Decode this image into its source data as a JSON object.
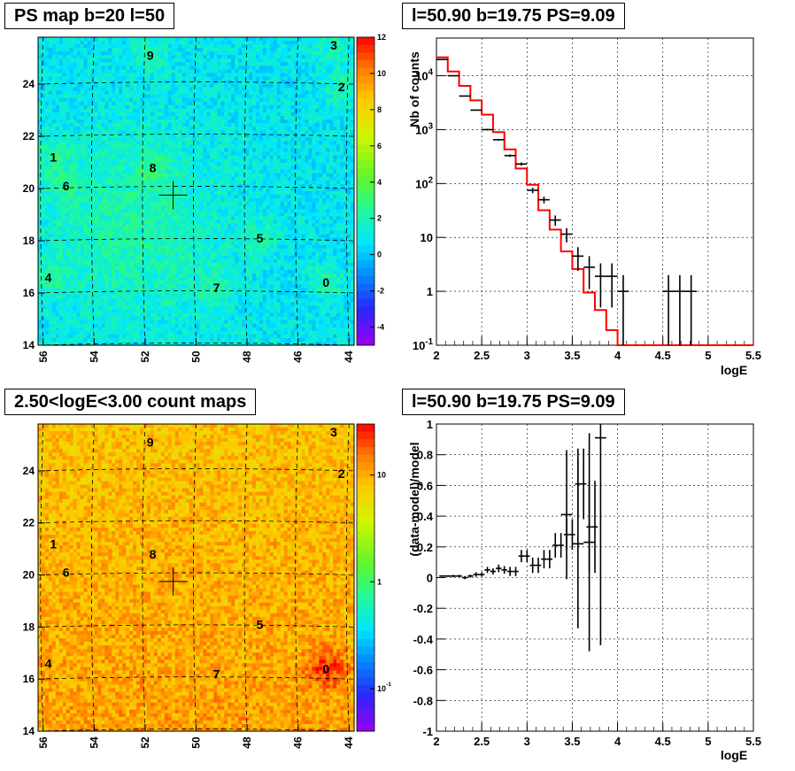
{
  "panels": {
    "tl": {
      "title": "PS map b=20 l=50"
    },
    "tr": {
      "title": "l=50.90 b=19.75 PS=9.09"
    },
    "bl": {
      "title": "2.50<logE<3.00 count maps"
    },
    "br": {
      "title": "l=50.90 b=19.75 PS=9.09"
    }
  },
  "colors": {
    "model_line": "#ff0000",
    "data": "#000000"
  },
  "chart_data": [
    {
      "type": "heatmap",
      "title": "PS map b=20 l=50",
      "x_ticks": [
        "56",
        "54",
        "52",
        "50",
        "48",
        "46",
        "44"
      ],
      "y_ticks": [
        "14",
        "16",
        "18",
        "20",
        "22",
        "24"
      ],
      "xlim": [
        56.2,
        43.8
      ],
      "ylim": [
        14,
        25.8
      ],
      "colorbar": {
        "min": -5,
        "max": 12,
        "ticks": [
          "12",
          "10",
          "8",
          "6",
          "4",
          "2",
          "0",
          "-2",
          "-4"
        ],
        "scale": "linear"
      },
      "marker": {
        "l": 50.9,
        "b": 19.75
      },
      "sources": [
        {
          "label": "0",
          "l": 44.9,
          "b": 16.4
        },
        {
          "label": "1",
          "l": 55.6,
          "b": 21.2
        },
        {
          "label": "2",
          "l": 44.3,
          "b": 23.9
        },
        {
          "label": "3",
          "l": 44.6,
          "b": 25.5
        },
        {
          "label": "4",
          "l": 55.8,
          "b": 16.6
        },
        {
          "label": "5",
          "l": 47.5,
          "b": 18.1
        },
        {
          "label": "6",
          "l": 55.1,
          "b": 20.1
        },
        {
          "label": "7",
          "l": 49.2,
          "b": 16.2
        },
        {
          "label": "8",
          "l": 51.7,
          "b": 20.8
        },
        {
          "label": "9",
          "l": 51.8,
          "b": 25.1
        }
      ]
    },
    {
      "type": "line",
      "title": "l=50.90 b=19.75 PS=9.09",
      "xlabel": "logE",
      "ylabel": "Nb of counts",
      "xlim": [
        2,
        5.5
      ],
      "ylim": [
        0.1,
        50000
      ],
      "yscale": "log",
      "grid": true,
      "x_ticks": [
        "2",
        "2.5",
        "3",
        "3.5",
        "4",
        "4.5",
        "5",
        "5.5"
      ],
      "y_ticks": [
        "10^-1",
        "1",
        "10",
        "10^2",
        "10^3",
        "10^4"
      ],
      "bin_width": 0.125,
      "series": [
        {
          "x": [
            2.0625,
            2.1875,
            2.3125,
            2.4375,
            2.5625,
            2.6875,
            2.8125,
            2.9375,
            3.0625,
            3.1875,
            3.3125,
            3.4375,
            3.5625,
            3.6875,
            3.8125,
            3.9375,
            4.0625,
            4.5625,
            4.6875,
            4.8125
          ],
          "values": [
            20000,
            10000,
            4200,
            2300,
            1000,
            650,
            330,
            230,
            75,
            50,
            21,
            11.5,
            4.5,
            2.8,
            1.9,
            1.9,
            1,
            1,
            1,
            1
          ],
          "errors_low": [
            141,
            100,
            65,
            48,
            32,
            25,
            18,
            15,
            8.7,
            7.1,
            4.6,
            3.4,
            2.1,
            1.7,
            1.4,
            1.4,
            1,
            1,
            1,
            1
          ],
          "errors_high": [
            141,
            100,
            65,
            48,
            32,
            25,
            18,
            15,
            8.7,
            7.1,
            4.6,
            3.4,
            2.1,
            1.7,
            1.4,
            1.4,
            1,
            1,
            1,
            1
          ]
        },
        {
          "bin_edges": [
            2.0,
            2.125,
            2.25,
            2.375,
            2.5,
            2.625,
            2.75,
            2.875,
            3.0,
            3.125,
            3.25,
            3.375,
            3.5,
            3.625,
            3.75,
            3.875,
            4.0,
            4.125,
            5.5
          ],
          "values": [
            22000,
            12000,
            6500,
            3500,
            1900,
            900,
            430,
            190,
            95,
            32,
            14,
            5.5,
            2.6,
            0.95,
            0.45,
            0.19,
            0.08,
            0.1
          ]
        }
      ]
    },
    {
      "type": "heatmap",
      "title": "2.50<logE<3.00 count maps",
      "x_ticks": [
        "56",
        "54",
        "52",
        "50",
        "48",
        "46",
        "44"
      ],
      "y_ticks": [
        "14",
        "16",
        "18",
        "20",
        "22",
        "24"
      ],
      "xlim": [
        56.2,
        43.8
      ],
      "ylim": [
        14,
        25.8
      ],
      "colorbar": {
        "min": 0.04,
        "max": 30,
        "ticks": [
          "10",
          "1",
          "10^-1"
        ],
        "scale": "log"
      },
      "marker": {
        "l": 50.9,
        "b": 19.75
      },
      "sources": [
        {
          "label": "0",
          "l": 44.9,
          "b": 16.4
        },
        {
          "label": "1",
          "l": 55.6,
          "b": 21.2
        },
        {
          "label": "2",
          "l": 44.3,
          "b": 23.9
        },
        {
          "label": "3",
          "l": 44.6,
          "b": 25.5
        },
        {
          "label": "4",
          "l": 55.8,
          "b": 16.6
        },
        {
          "label": "5",
          "l": 47.5,
          "b": 18.1
        },
        {
          "label": "6",
          "l": 55.1,
          "b": 20.1
        },
        {
          "label": "7",
          "l": 49.2,
          "b": 16.2
        },
        {
          "label": "8",
          "l": 51.7,
          "b": 20.8
        },
        {
          "label": "9",
          "l": 51.8,
          "b": 25.1
        }
      ]
    },
    {
      "type": "scatter",
      "title": "l=50.90 b=19.75 PS=9.09",
      "xlabel": "logE",
      "ylabel": "(data-model)/model",
      "xlim": [
        2,
        5.5
      ],
      "ylim": [
        -1,
        1
      ],
      "grid": true,
      "x_ticks": [
        "2",
        "2.5",
        "3",
        "3.5",
        "4",
        "4.5",
        "5",
        "5.5"
      ],
      "y_ticks": [
        "-1",
        "-0.8",
        "-0.6",
        "-0.4",
        "-0.2",
        "0",
        "0.2",
        "0.4",
        "0.6",
        "0.8",
        "1"
      ],
      "bin_width": 0.0625,
      "series": [
        {
          "x": [
            2.0625,
            2.125,
            2.1875,
            2.25,
            2.3125,
            2.375,
            2.4375,
            2.5,
            2.5625,
            2.625,
            2.6875,
            2.75,
            2.8125,
            2.875,
            2.9375,
            3.0,
            3.0625,
            3.125,
            3.1875,
            3.25,
            3.3125,
            3.375,
            3.4375,
            3.5,
            3.5625,
            3.625,
            3.6875,
            3.75
          ],
          "values": [
            0.01,
            0.01,
            0.01,
            0.01,
            0.0,
            0.01,
            0.02,
            0.02,
            0.05,
            0.04,
            0.06,
            0.05,
            0.04,
            0.04,
            0.14,
            0.14,
            0.08,
            0.08,
            0.12,
            0.12,
            0.21,
            0.21,
            0.28,
            0.28,
            0.61,
            0.61,
            0.33,
            0.33
          ],
          "errors": [
            0.005,
            0.005,
            0.008,
            0.008,
            0.01,
            0.01,
            0.015,
            0.015,
            0.02,
            0.02,
            0.025,
            0.025,
            0.03,
            0.03,
            0.04,
            0.04,
            0.05,
            0.05,
            0.06,
            0.06,
            0.08,
            0.08,
            0.1,
            0.1,
            0.23,
            0.23,
            0.3,
            0.3
          ]
        },
        {
          "x": [
            3.4375,
            3.5625,
            3.6875,
            3.8125
          ],
          "values": [
            0.41,
            0.22,
            0.23,
            0.91
          ],
          "errors": [
            0.42,
            0.55,
            0.71,
            1.35
          ]
        }
      ]
    }
  ]
}
